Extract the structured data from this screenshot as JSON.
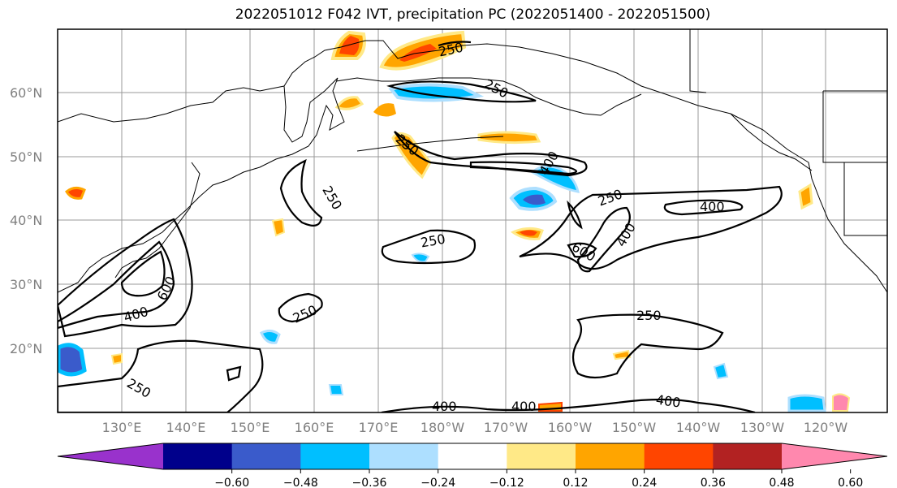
{
  "title": "2022051012 F042 IVT, precipitation PC (2022051400 - 2022051500)",
  "map": {
    "lat_labels": [
      "60°N",
      "50°N",
      "40°N",
      "30°N",
      "20°N"
    ],
    "lon_labels": [
      "130°E",
      "140°E",
      "150°E",
      "160°E",
      "170°E",
      "180°W",
      "170°W",
      "160°W",
      "150°W",
      "140°W",
      "130°W",
      "120°W"
    ],
    "contour_levels": [
      "250",
      "400",
      "600"
    ],
    "contour_labels": [
      {
        "text": "250"
      },
      {
        "text": "250"
      },
      {
        "text": "250"
      },
      {
        "text": "250"
      },
      {
        "text": "250"
      },
      {
        "text": "250"
      },
      {
        "text": "250"
      },
      {
        "text": "250"
      },
      {
        "text": "400"
      },
      {
        "text": "400"
      },
      {
        "text": "400"
      },
      {
        "text": "400"
      },
      {
        "text": "400"
      },
      {
        "text": "400"
      },
      {
        "text": "600"
      },
      {
        "text": "600"
      }
    ]
  },
  "colorbar": {
    "colors": [
      "#9932CC",
      "#00008B",
      "#3A5BCB",
      "#00BFFF",
      "#ADDFFF",
      "#FFFFFF",
      "#FFE987",
      "#FFA500",
      "#FF4500",
      "#B22222",
      "#FF88AE"
    ],
    "labels": [
      "−0.60",
      "−0.48",
      "−0.36",
      "−0.24",
      "−0.12",
      "0.12",
      "0.24",
      "0.36",
      "0.48",
      "0.60"
    ]
  }
}
